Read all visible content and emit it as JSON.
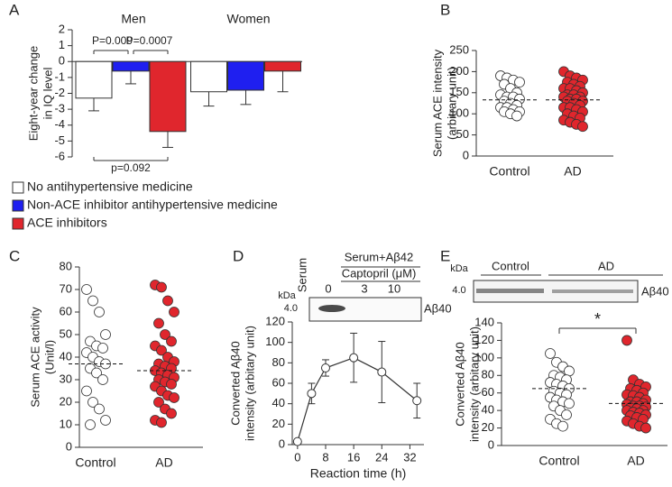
{
  "chart_data": [
    {
      "type": "bar",
      "panel": "A",
      "ylabel": [
        "Eight-year change",
        "in IQ level"
      ],
      "categories": [
        "Men",
        "Women"
      ],
      "series": [
        {
          "name": "No antihypertensive medicine",
          "color": "#ffffff",
          "values": [
            -2.3,
            -1.9
          ],
          "errors": [
            0.8,
            0.9
          ]
        },
        {
          "name": "Non-ACE inhibitor antihypertensive medicine",
          "color": "#1f1ff0",
          "values": [
            -0.6,
            -1.8
          ],
          "errors": [
            0.8,
            0.9
          ]
        },
        {
          "name": "ACE inhibitors",
          "color": "#e0262d",
          "values": [
            -4.4,
            -0.6
          ],
          "errors": [
            1.0,
            1.3
          ]
        }
      ],
      "ylim": [
        -6,
        2
      ],
      "yticks": [
        -6,
        -5,
        -4,
        -3,
        -2,
        -1,
        0,
        1,
        2
      ],
      "annotations": [
        "P=0.009",
        "P=0.0007",
        "p=0.092"
      ]
    },
    {
      "type": "strip",
      "panel": "B",
      "ylabel": [
        "Serum ACE intensity",
        "(arbitrary unit)"
      ],
      "categories": [
        "Control",
        "AD"
      ],
      "series": [
        {
          "color": "#ffffff",
          "mean": 133,
          "values": [
            190,
            185,
            180,
            175,
            170,
            160,
            150,
            145,
            140,
            140,
            135,
            130,
            125,
            120,
            115,
            115,
            110,
            105,
            105,
            100,
            95
          ]
        },
        {
          "color": "#e0262d",
          "mean": 133,
          "values": [
            200,
            190,
            185,
            180,
            175,
            170,
            165,
            160,
            160,
            155,
            150,
            145,
            145,
            140,
            140,
            135,
            135,
            130,
            130,
            125,
            120,
            115,
            115,
            110,
            105,
            100,
            95,
            90,
            85,
            80,
            75,
            70
          ]
        }
      ],
      "ylim": [
        0,
        250
      ],
      "yticks": [
        0,
        50,
        100,
        150,
        200,
        250
      ]
    },
    {
      "type": "strip",
      "panel": "C",
      "ylabel": [
        "Serum ACE activity",
        "(Unit/l)"
      ],
      "categories": [
        "Control",
        "AD"
      ],
      "series": [
        {
          "color": "#ffffff",
          "mean": 37,
          "values": [
            70,
            65,
            60,
            50,
            47,
            45,
            44,
            42,
            40,
            38,
            37,
            35,
            33,
            30,
            25,
            20,
            17,
            12,
            10
          ]
        },
        {
          "color": "#e0262d",
          "mean": 34,
          "values": [
            72,
            71,
            65,
            60,
            55,
            50,
            47,
            45,
            43,
            40,
            38,
            37,
            36,
            35,
            34,
            33,
            32,
            31,
            30,
            29,
            28,
            27,
            25,
            23,
            22,
            20,
            17,
            15,
            12,
            11
          ]
        }
      ],
      "ylim": [
        0,
        80
      ],
      "yticks": [
        0,
        10,
        20,
        30,
        40,
        50,
        60,
        70,
        80
      ]
    },
    {
      "type": "line",
      "panel": "D",
      "ylabel": [
        "Converted Aβ40",
        "intensity (arbitary unit)"
      ],
      "xlabel": "Reaction time (h)",
      "blot": {
        "kda": "kDa",
        "mw": "4.0",
        "lane": "Serum",
        "header": "Serum+Aβ42",
        "drug": "Captopril (μM)",
        "doses": [
          "0",
          "3",
          "10"
        ],
        "band": "Aβ40"
      },
      "x": [
        0,
        4,
        8,
        16,
        24,
        34
      ],
      "values": [
        3,
        50,
        75,
        85,
        71,
        43
      ],
      "errors": [
        0,
        10,
        8,
        24,
        30,
        17
      ],
      "xlim": [
        -1.5,
        36
      ],
      "xticks": [
        0,
        8,
        16,
        24,
        32
      ],
      "ylim": [
        0,
        120
      ],
      "yticks": [
        0,
        20,
        40,
        60,
        80,
        100,
        120
      ]
    },
    {
      "type": "strip",
      "panel": "E",
      "ylabel": [
        "Converted Aβ40",
        "intensity (arbitary unit)"
      ],
      "blot": {
        "kda": "kDa",
        "mw": "4.0",
        "groups": [
          "Control",
          "AD"
        ],
        "band": "Aβ40"
      },
      "annotation": "*",
      "categories": [
        "Control",
        "AD"
      ],
      "series": [
        {
          "color": "#ffffff",
          "mean": 65,
          "values": [
            105,
            95,
            90,
            85,
            80,
            78,
            75,
            72,
            70,
            68,
            65,
            62,
            60,
            58,
            55,
            52,
            50,
            48,
            45,
            40,
            35,
            30,
            25,
            22
          ]
        },
        {
          "color": "#e0262d",
          "mean": 48,
          "values": [
            120,
            75,
            70,
            67,
            65,
            63,
            60,
            58,
            57,
            55,
            52,
            50,
            50,
            48,
            47,
            45,
            45,
            44,
            43,
            42,
            40,
            40,
            38,
            37,
            35,
            34,
            32,
            30,
            28,
            25,
            22,
            20
          ]
        }
      ],
      "ylim": [
        0,
        140
      ],
      "yticks": [
        0,
        20,
        40,
        60,
        80,
        100,
        120,
        140
      ]
    }
  ]
}
